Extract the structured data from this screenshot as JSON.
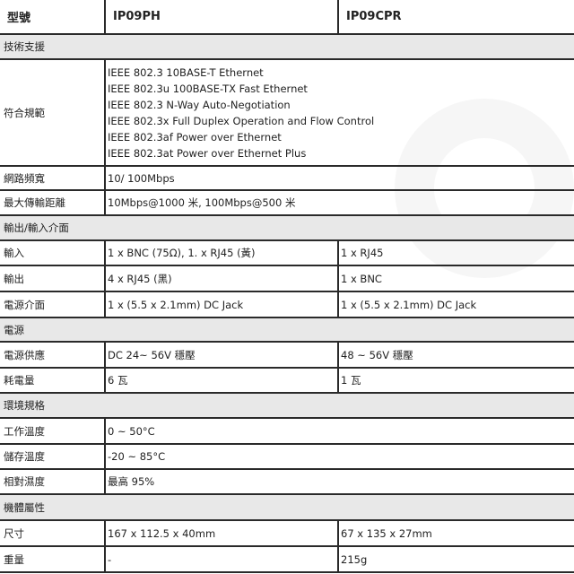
{
  "header": {
    "label": "型號",
    "models": [
      "IP09PH",
      "IP09CPR"
    ]
  },
  "rows": [
    {
      "type": "section",
      "label": "技術支援"
    },
    {
      "type": "span",
      "label": "符合規範",
      "lines": [
        "IEEE 802.3 10BASE-T Ethernet",
        "IEEE 802.3u 100BASE-TX Fast Ethernet",
        "IEEE 802.3 N-Way Auto-Negotiation",
        "IEEE 802.3x Full Duplex Operation and Flow Control",
        "IEEE 802.3af Power over Ethernet",
        "IEEE 802.3at Power over Ethernet Plus"
      ]
    },
    {
      "type": "span",
      "label": "網路頻寬",
      "lines": [
        "10/ 100Mbps"
      ]
    },
    {
      "type": "span",
      "label": "最大傳輸距離",
      "lines": [
        "10Mbps@1000 米, 100Mbps@500 米"
      ]
    },
    {
      "type": "section",
      "label": "輸出/輸入介面"
    },
    {
      "type": "split",
      "label": "輸入",
      "values": [
        "1 x BNC (75Ω), 1. x RJ45 (黃)",
        "1 x RJ45"
      ]
    },
    {
      "type": "split",
      "label": "輸出",
      "values": [
        "4 x RJ45 (黑)",
        "1 x BNC"
      ]
    },
    {
      "type": "split",
      "label": "電源介面",
      "values": [
        "1 x (5.5 x 2.1mm) DC Jack",
        "1 x (5.5 x 2.1mm) DC Jack"
      ]
    },
    {
      "type": "section",
      "label": "電源"
    },
    {
      "type": "split",
      "label": "電源供應",
      "values": [
        "DC 24~ 56V 穩壓",
        "48 ~ 56V  穩壓"
      ]
    },
    {
      "type": "split",
      "label": "耗電量",
      "values": [
        "6 瓦",
        "1 瓦"
      ]
    },
    {
      "type": "section",
      "label": "環境規格"
    },
    {
      "type": "span",
      "label": "工作溫度",
      "lines": [
        "0 ~ 50°C"
      ]
    },
    {
      "type": "span",
      "label": "儲存溫度",
      "lines": [
        "-20 ~ 85°C"
      ]
    },
    {
      "type": "span",
      "label": "相對濕度",
      "lines": [
        "最高  95%"
      ]
    },
    {
      "type": "section",
      "label": "機體屬性"
    },
    {
      "type": "split",
      "label": "尺寸",
      "values": [
        "167 x 112.5 x 40mm",
        "67 x 135 x 27mm"
      ]
    },
    {
      "type": "split",
      "label": "重量",
      "values": [
        "-",
        "215g"
      ]
    }
  ]
}
